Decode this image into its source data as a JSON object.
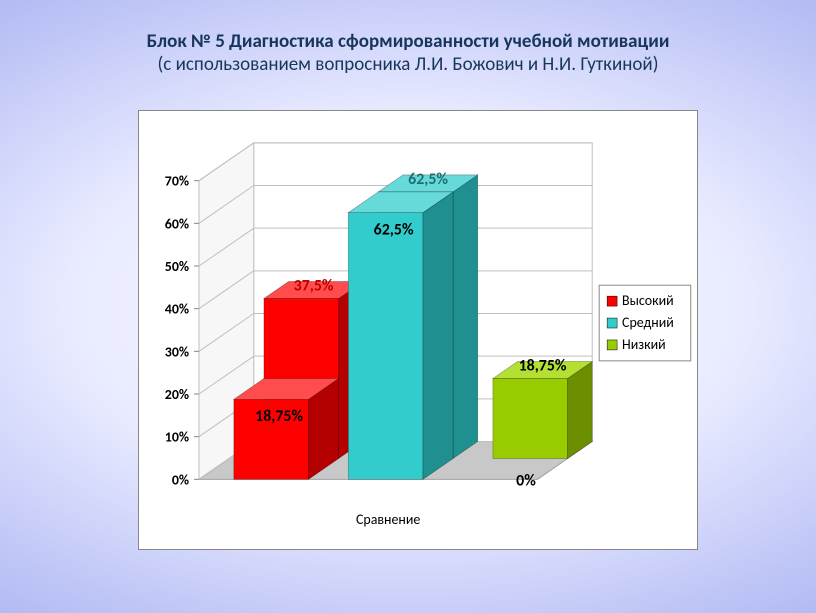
{
  "title": {
    "line1": "Блок № 5 Диагностика сформированности учебной мотивации",
    "line2": "(с использованием вопросника Л.И. Божович и Н.И. Гуткиной)"
  },
  "chart": {
    "type": "3d-bar",
    "xaxis_label": "Сравнение",
    "ylim": [
      0,
      70
    ],
    "ytick_step": 10,
    "ytick_suffix": "%",
    "background_color": "#ffffff",
    "wall_color": "#ffffff",
    "grid_color": "#bfbfbf",
    "axis_color": "#868686",
    "axis_font_size": 14,
    "datalabel_font_size": 16,
    "series": [
      {
        "name": "Высокий",
        "color": "#ff0000",
        "side_color": "#b40000",
        "top_color": "#ff4d4d",
        "values_front": 18.75,
        "values_back": 37.5,
        "label_front": "18,75%",
        "label_back": "37,5%",
        "label_front_color": "#000000",
        "label_back_color": "#c00000"
      },
      {
        "name": "Средний",
        "color": "#33cccc",
        "side_color": "#1f8f8f",
        "top_color": "#66dada",
        "values_front": 62.5,
        "values_back": 62.5,
        "label_front": "62,5%",
        "label_back": "62,5%",
        "label_front_color": "#000000",
        "label_back_color": "#1f6f6f"
      },
      {
        "name": "Низкий",
        "color": "#99cc00",
        "side_color": "#6b8f00",
        "top_color": "#b3e033",
        "values_front": 0,
        "values_back": 18.75,
        "label_front": "0%",
        "label_back": "18,75%",
        "label_front_color": "#000000",
        "label_back_color": "#000000"
      }
    ],
    "legend": {
      "position": "right",
      "border_color": "#888888",
      "font_size": 14
    }
  }
}
